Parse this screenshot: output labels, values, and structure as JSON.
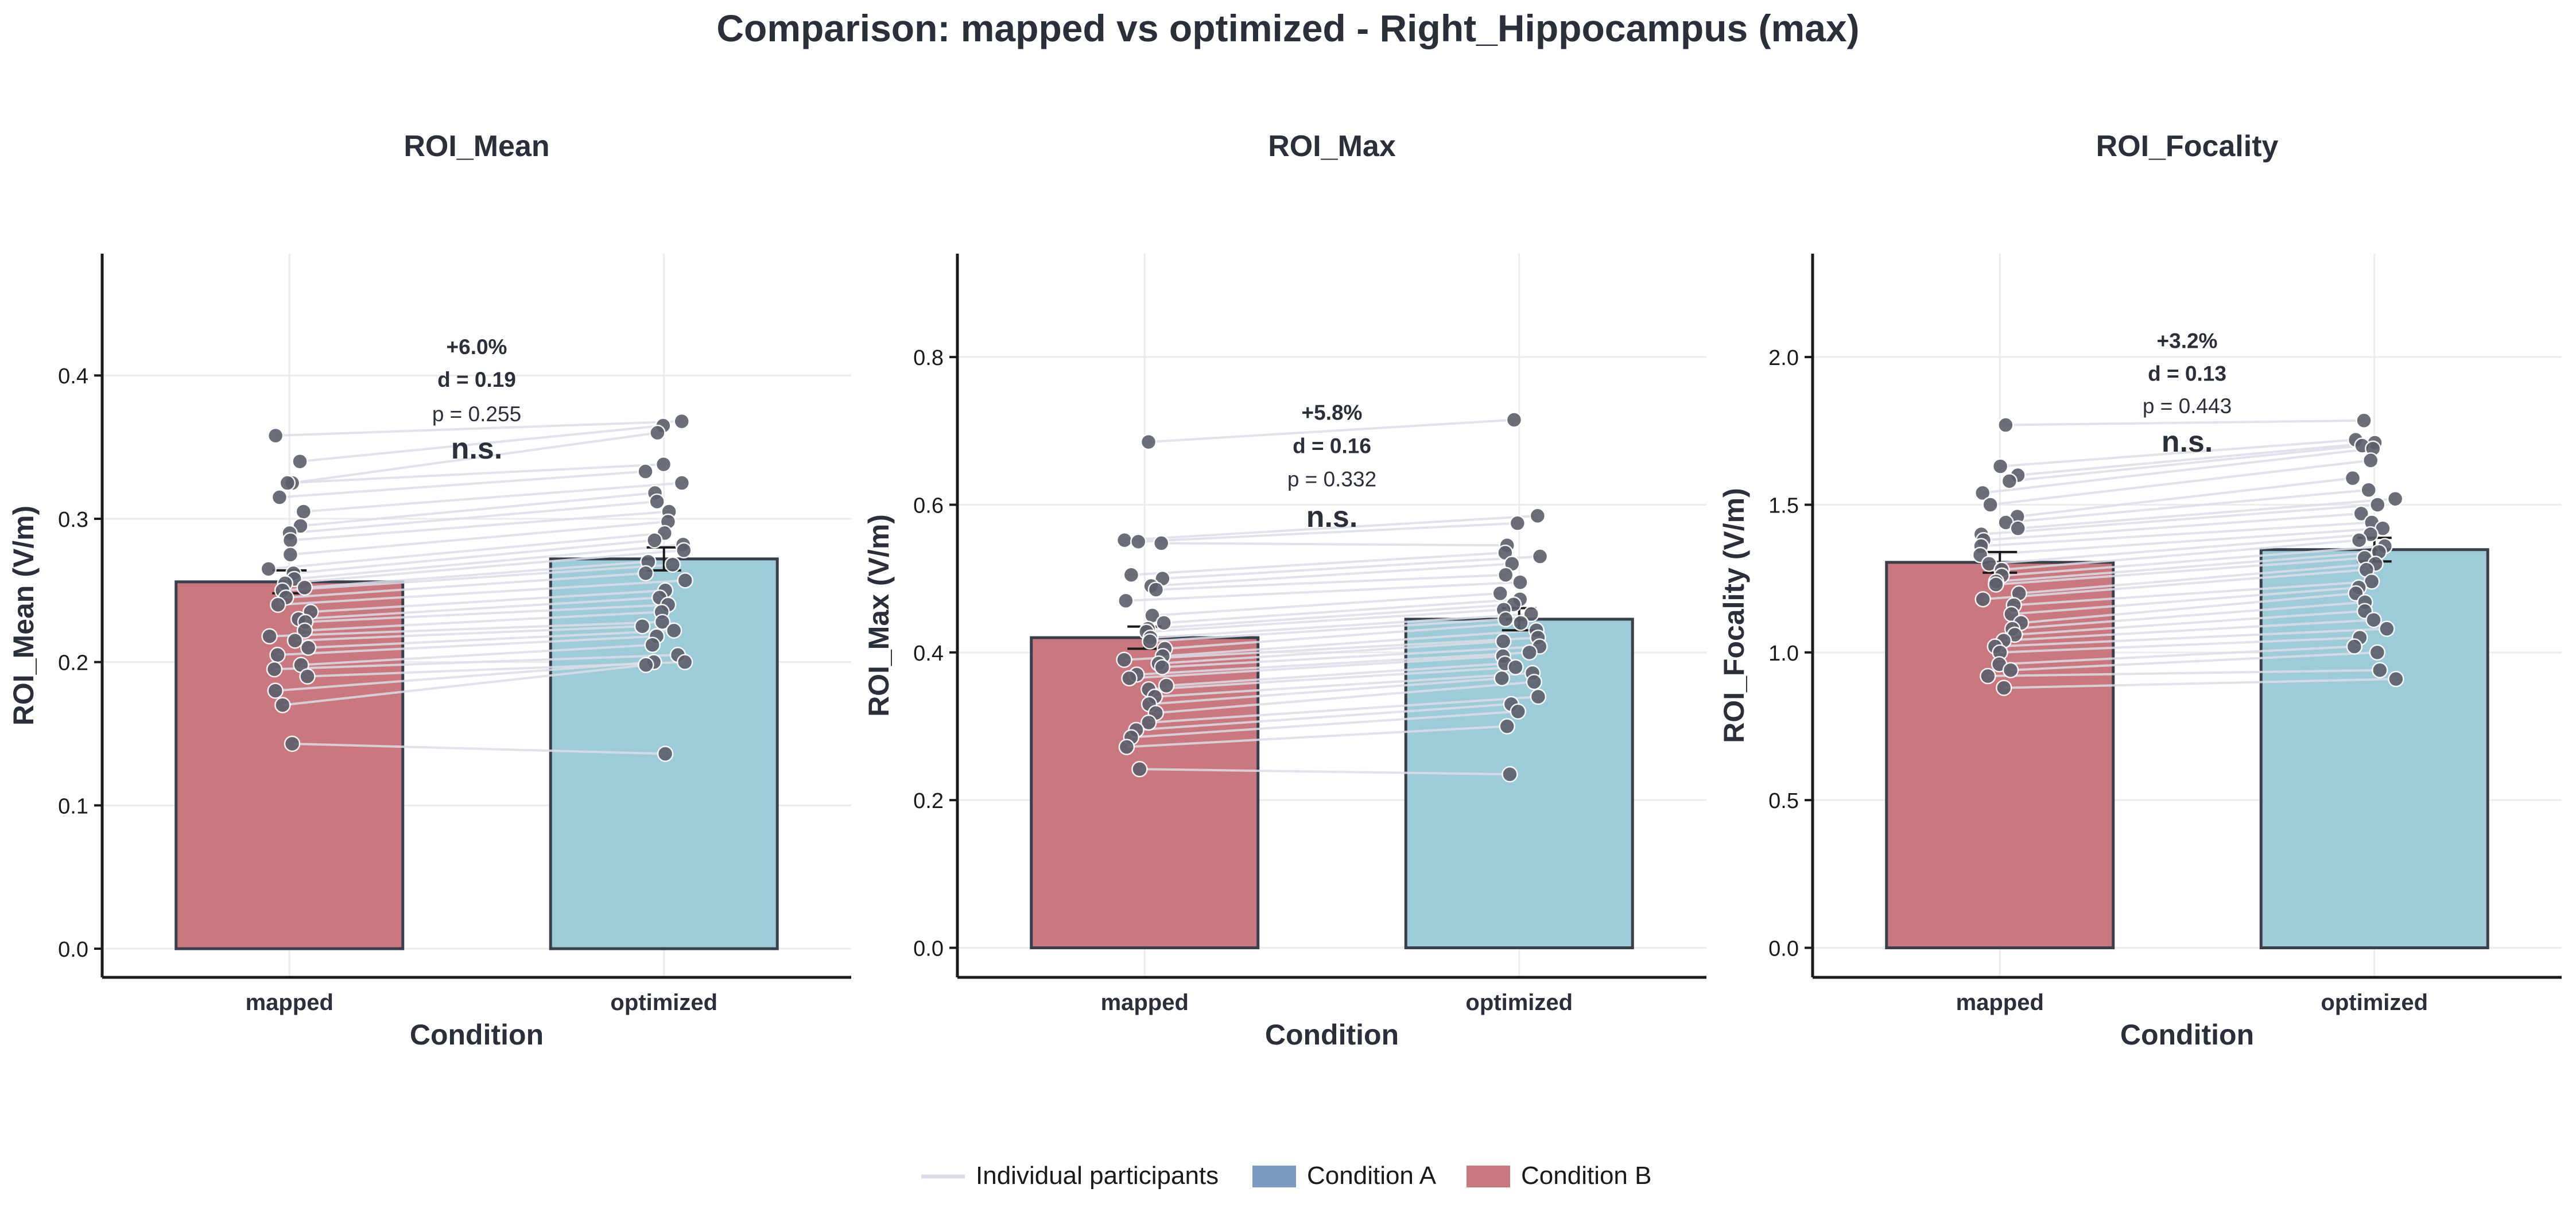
{
  "figure": {
    "suptitle": "Comparison: mapped vs optimized - Right_Hippocampus (max)"
  },
  "colors": {
    "condition_a": "#7b9cc0",
    "condition_b": "#c9787f",
    "mapped_bar": "#c9787f",
    "optimized_bar": "#9ecbd8",
    "bar_edge": "#3a3f4c",
    "point": "#5c5f6a",
    "paired_line": "#dcdde8",
    "text": "#2b2f3a",
    "grid": "#ececec"
  },
  "legend": {
    "items": [
      {
        "label": "Individual participants",
        "kind": "line",
        "color": "#dcdde8"
      },
      {
        "label": "Condition A",
        "kind": "patch",
        "color": "#7b9cc0"
      },
      {
        "label": "Condition B",
        "kind": "patch",
        "color": "#c9787f"
      }
    ]
  },
  "chart_data": [
    {
      "type": "bar",
      "title": "ROI_Mean",
      "xlabel": "Condition",
      "ylabel": "ROI_Mean (V/m)",
      "categories": [
        "mapped",
        "optimized"
      ],
      "values": [
        0.256,
        0.272
      ],
      "errors": [
        0.008,
        0.008
      ],
      "ylim": [
        -0.02,
        0.485
      ],
      "yticks": [
        0.0,
        0.1,
        0.2,
        0.3,
        0.4
      ],
      "ytick_labels": [
        "0.0",
        "0.1",
        "0.2",
        "0.3",
        "0.4"
      ],
      "grid": true,
      "stats": {
        "pct": "+6.0%",
        "d": "d = 0.19",
        "p": "p = 0.255",
        "sig": "n.s.",
        "y": [
          0.415,
          0.392,
          0.368,
          0.342
        ]
      },
      "paired": {
        "mapped": [
          0.358,
          0.34,
          0.325,
          0.325,
          0.315,
          0.305,
          0.295,
          0.29,
          0.285,
          0.275,
          0.265,
          0.262,
          0.258,
          0.255,
          0.252,
          0.25,
          0.245,
          0.24,
          0.235,
          0.23,
          0.228,
          0.222,
          0.218,
          0.215,
          0.21,
          0.205,
          0.198,
          0.195,
          0.19,
          0.18,
          0.17,
          0.143
        ],
        "optimized": [
          0.368,
          0.365,
          0.36,
          0.338,
          0.333,
          0.325,
          0.318,
          0.312,
          0.305,
          0.298,
          0.29,
          0.285,
          0.282,
          0.278,
          0.27,
          0.268,
          0.262,
          0.257,
          0.25,
          0.245,
          0.24,
          0.235,
          0.228,
          0.225,
          0.222,
          0.218,
          0.212,
          0.205,
          0.2,
          0.2,
          0.198,
          0.136
        ]
      }
    },
    {
      "type": "bar",
      "title": "ROI_Max",
      "xlabel": "Condition",
      "ylabel": "ROI_Max (V/m)",
      "categories": [
        "mapped",
        "optimized"
      ],
      "values": [
        0.42,
        0.445
      ],
      "errors": [
        0.015,
        0.015
      ],
      "ylim": [
        -0.04,
        0.94
      ],
      "yticks": [
        0.0,
        0.2,
        0.4,
        0.6,
        0.8
      ],
      "ytick_labels": [
        "0.0",
        "0.2",
        "0.4",
        "0.6",
        "0.8"
      ],
      "grid": true,
      "stats": {
        "pct": "+5.8%",
        "d": "d = 0.16",
        "p": "p = 0.332",
        "sig": "n.s.",
        "y": [
          0.715,
          0.67,
          0.625,
          0.57
        ]
      },
      "paired": {
        "mapped": [
          0.685,
          0.552,
          0.55,
          0.548,
          0.505,
          0.5,
          0.49,
          0.485,
          0.47,
          0.45,
          0.44,
          0.432,
          0.428,
          0.42,
          0.415,
          0.405,
          0.395,
          0.39,
          0.385,
          0.38,
          0.37,
          0.365,
          0.355,
          0.35,
          0.34,
          0.33,
          0.318,
          0.305,
          0.295,
          0.285,
          0.272,
          0.242
        ],
        "optimized": [
          0.715,
          0.585,
          0.575,
          0.545,
          0.535,
          0.53,
          0.52,
          0.505,
          0.495,
          0.48,
          0.472,
          0.465,
          0.458,
          0.452,
          0.445,
          0.44,
          0.43,
          0.42,
          0.415,
          0.408,
          0.4,
          0.395,
          0.385,
          0.38,
          0.372,
          0.365,
          0.36,
          0.34,
          0.33,
          0.32,
          0.3,
          0.235
        ]
      }
    },
    {
      "type": "bar",
      "title": "ROI_Focality",
      "xlabel": "Condition",
      "ylabel": "ROI_Focality (V/m)",
      "categories": [
        "mapped",
        "optimized"
      ],
      "values": [
        1.305,
        1.348
      ],
      "errors": [
        0.035,
        0.04
      ],
      "ylim": [
        -0.1,
        2.35
      ],
      "yticks": [
        0.0,
        0.5,
        1.0,
        1.5,
        2.0
      ],
      "ytick_labels": [
        "0.0",
        "0.5",
        "1.0",
        "1.5",
        "2.0"
      ],
      "grid": true,
      "stats": {
        "pct": "+3.2%",
        "d": "d = 0.13",
        "p": "p = 0.443",
        "sig": "n.s.",
        "y": [
          2.03,
          1.92,
          1.81,
          1.68
        ]
      },
      "paired": {
        "mapped": [
          1.77,
          1.63,
          1.6,
          1.58,
          1.54,
          1.5,
          1.46,
          1.44,
          1.42,
          1.4,
          1.38,
          1.36,
          1.33,
          1.3,
          1.28,
          1.26,
          1.24,
          1.23,
          1.2,
          1.18,
          1.16,
          1.13,
          1.1,
          1.08,
          1.06,
          1.04,
          1.02,
          1.0,
          0.96,
          0.94,
          0.92,
          0.88
        ],
        "optimized": [
          1.785,
          1.72,
          1.71,
          1.7,
          1.69,
          1.65,
          1.59,
          1.55,
          1.52,
          1.5,
          1.47,
          1.44,
          1.42,
          1.4,
          1.38,
          1.36,
          1.34,
          1.32,
          1.3,
          1.28,
          1.24,
          1.22,
          1.2,
          1.17,
          1.14,
          1.11,
          1.08,
          1.05,
          1.02,
          1.0,
          0.94,
          0.91
        ]
      }
    }
  ]
}
